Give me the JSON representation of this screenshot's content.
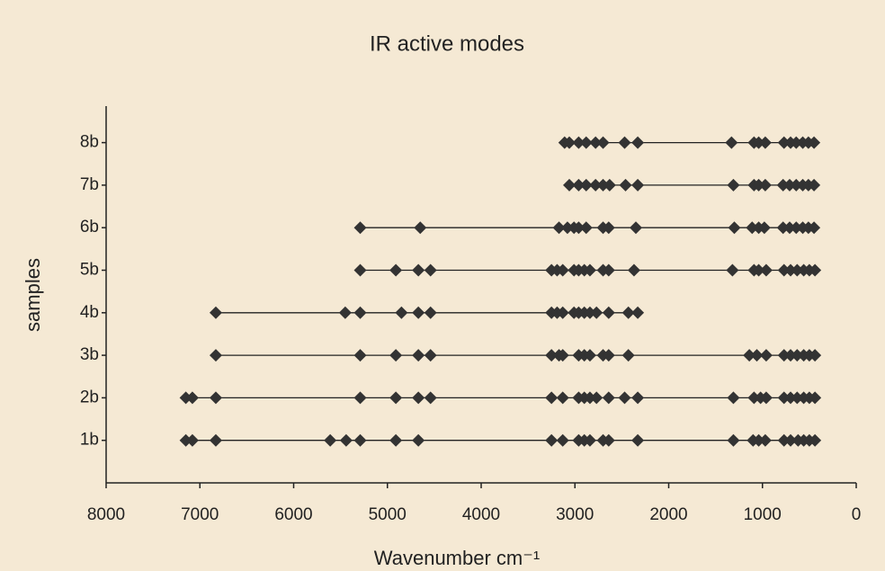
{
  "chart_data": {
    "type": "dot",
    "title": "IR active modes",
    "x_label": "Wavenumber cm⁻¹",
    "y_label": "samples",
    "color": "#333333",
    "categories": [
      "1b",
      "2b",
      "3b",
      "4b",
      "5b",
      "6b",
      "7b",
      "8b"
    ],
    "values": [
      [
        7150,
        7080,
        6830,
        5610,
        5440,
        5290,
        4910,
        4670,
        3250,
        3130,
        2960,
        2900,
        2840,
        2700,
        2640,
        2330,
        1310,
        1100,
        1040,
        970,
        770,
        700,
        620,
        560,
        500,
        440
      ],
      [
        7150,
        7080,
        6830,
        5290,
        4910,
        4670,
        4540,
        3250,
        3130,
        2960,
        2900,
        2840,
        2770,
        2640,
        2470,
        2330,
        1310,
        1090,
        1020,
        960,
        770,
        700,
        630,
        560,
        500,
        440
      ],
      [
        6830,
        5290,
        4910,
        4670,
        4540,
        3250,
        3170,
        3130,
        2960,
        2900,
        2840,
        2700,
        2640,
        2430,
        1140,
        1060,
        960,
        770,
        700,
        630,
        560,
        500,
        440
      ],
      [
        6830,
        5450,
        5290,
        4850,
        4670,
        4540,
        3250,
        3190,
        3130,
        3010,
        2960,
        2900,
        2840,
        2770,
        2640,
        2430,
        2330
      ],
      [
        5290,
        4910,
        4670,
        4540,
        3250,
        3190,
        3130,
        3010,
        2960,
        2900,
        2840,
        2700,
        2640,
        2370,
        1320,
        1090,
        1040,
        960,
        770,
        700,
        630,
        560,
        500,
        440
      ],
      [
        5290,
        4650,
        3170,
        3080,
        3010,
        2960,
        2880,
        2700,
        2640,
        2350,
        1300,
        1110,
        1040,
        980,
        780,
        710,
        640,
        570,
        510,
        450
      ],
      [
        3060,
        2960,
        2880,
        2780,
        2700,
        2630,
        2460,
        2330,
        1310,
        1090,
        1040,
        970,
        780,
        710,
        640,
        570,
        510,
        450
      ],
      [
        3110,
        3060,
        2960,
        2880,
        2780,
        2700,
        2470,
        2330,
        1330,
        1090,
        1040,
        970,
        770,
        700,
        640,
        570,
        510,
        450
      ]
    ],
    "xlim": [
      8000,
      0
    ],
    "xticks": [
      8000,
      7000,
      6000,
      5000,
      4000,
      3000,
      2000,
      1000,
      0
    ]
  }
}
